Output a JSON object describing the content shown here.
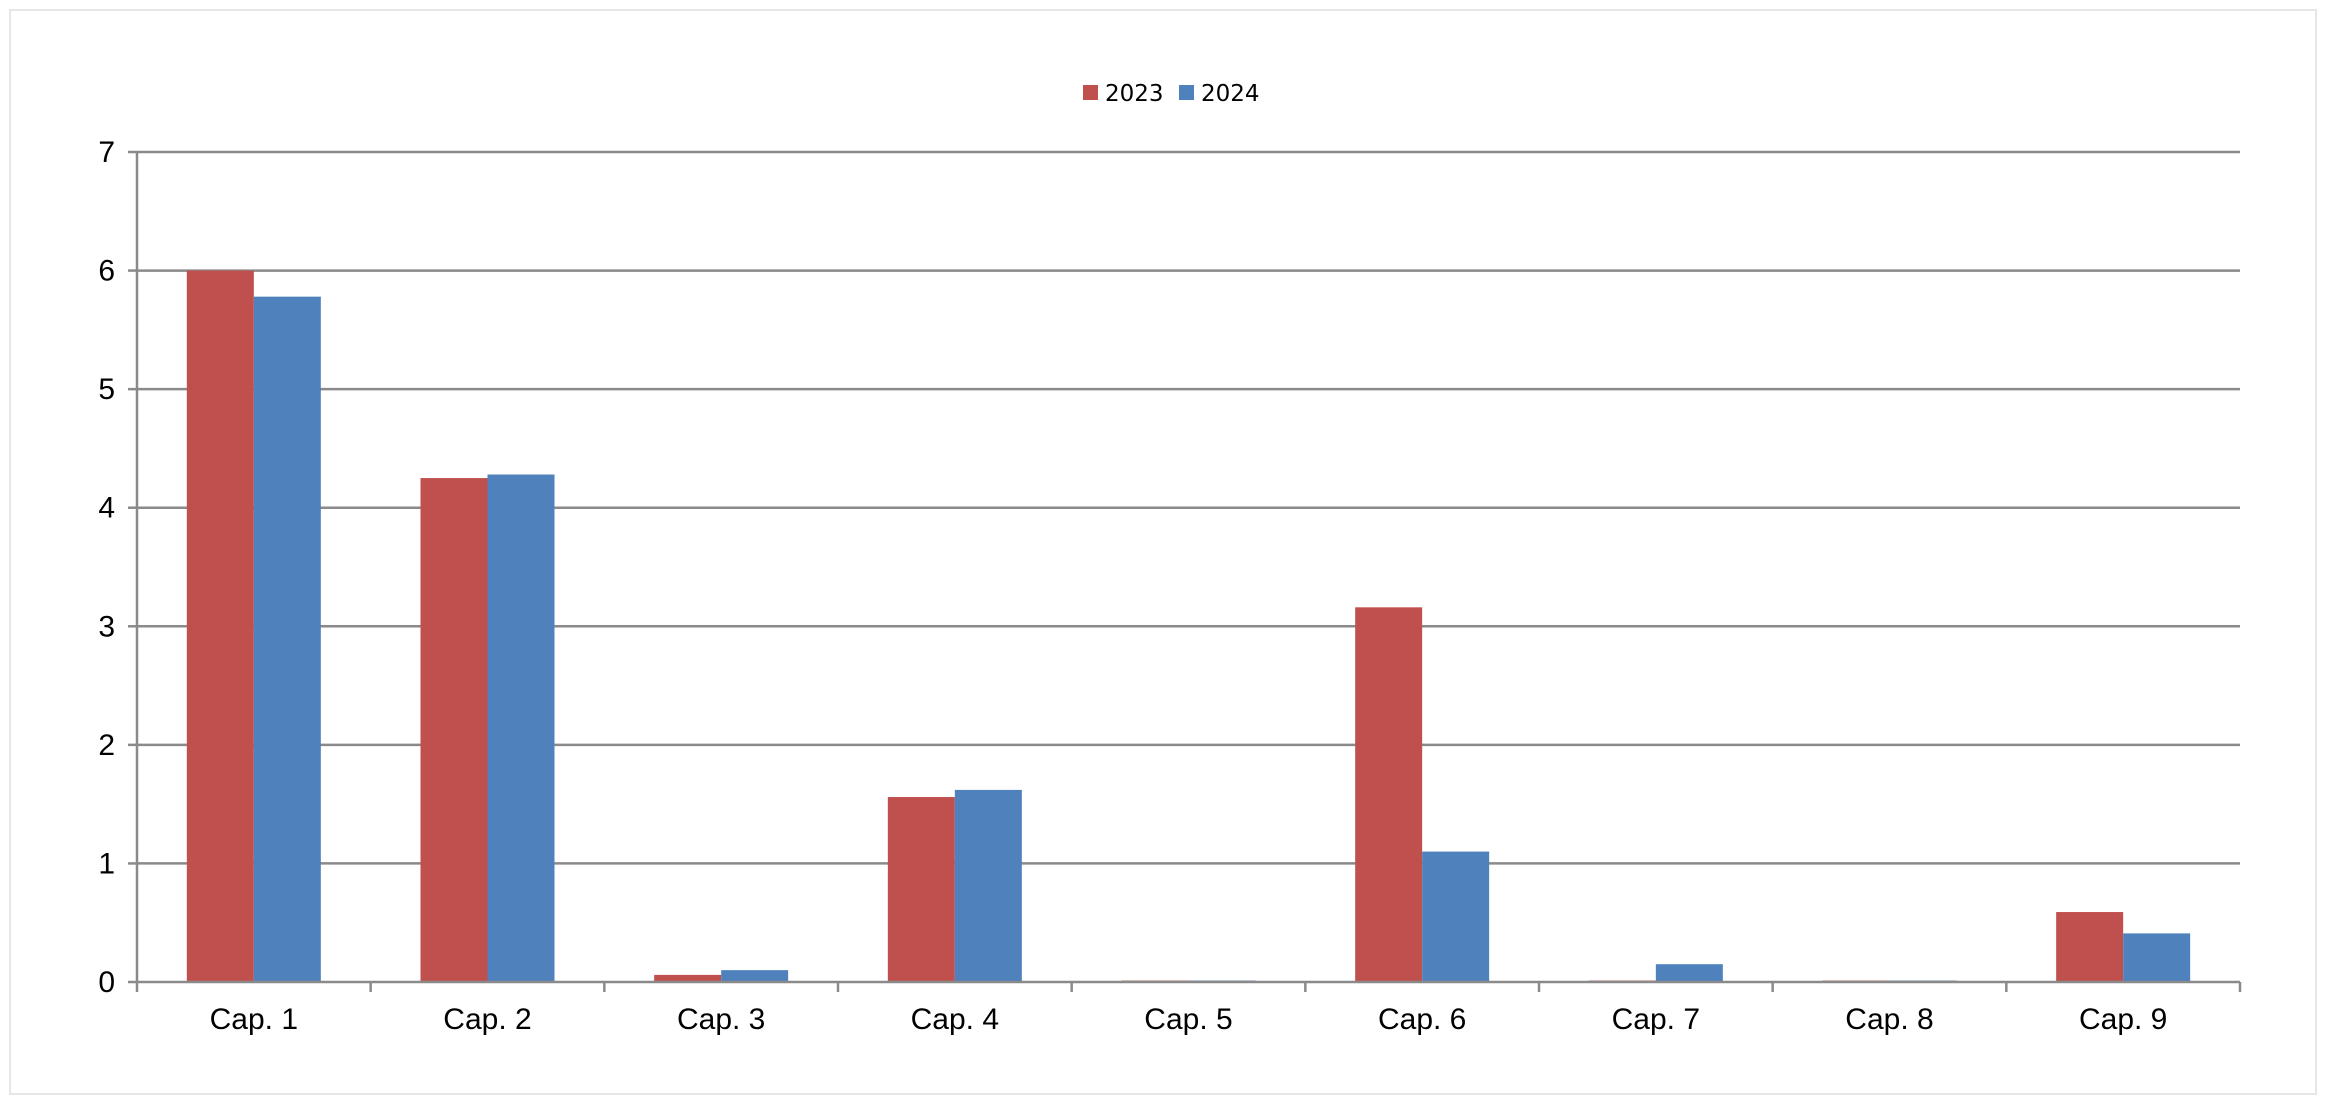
{
  "chart_data": {
    "type": "bar",
    "categories": [
      "Cap. 1",
      "Cap. 2",
      "Cap. 3",
      "Cap. 4",
      "Cap. 5",
      "Cap. 6",
      "Cap. 7",
      "Cap. 8",
      "Cap. 9"
    ],
    "series": [
      {
        "name": "2023",
        "color": "#c0504d",
        "values": [
          6.0,
          4.25,
          0.06,
          1.56,
          0.0,
          3.16,
          0.0,
          0.0,
          0.59
        ]
      },
      {
        "name": "2024",
        "color": "#4f81bd",
        "values": [
          5.78,
          4.28,
          0.1,
          1.62,
          0.0,
          1.1,
          0.15,
          0.0,
          0.41
        ]
      }
    ],
    "title": "",
    "xlabel": "",
    "ylabel": "",
    "ylim": [
      0,
      7
    ],
    "yticks": [
      "0",
      "1",
      "2",
      "3",
      "4",
      "5",
      "6",
      "7"
    ],
    "grid": true,
    "legend_position": "top-center"
  }
}
